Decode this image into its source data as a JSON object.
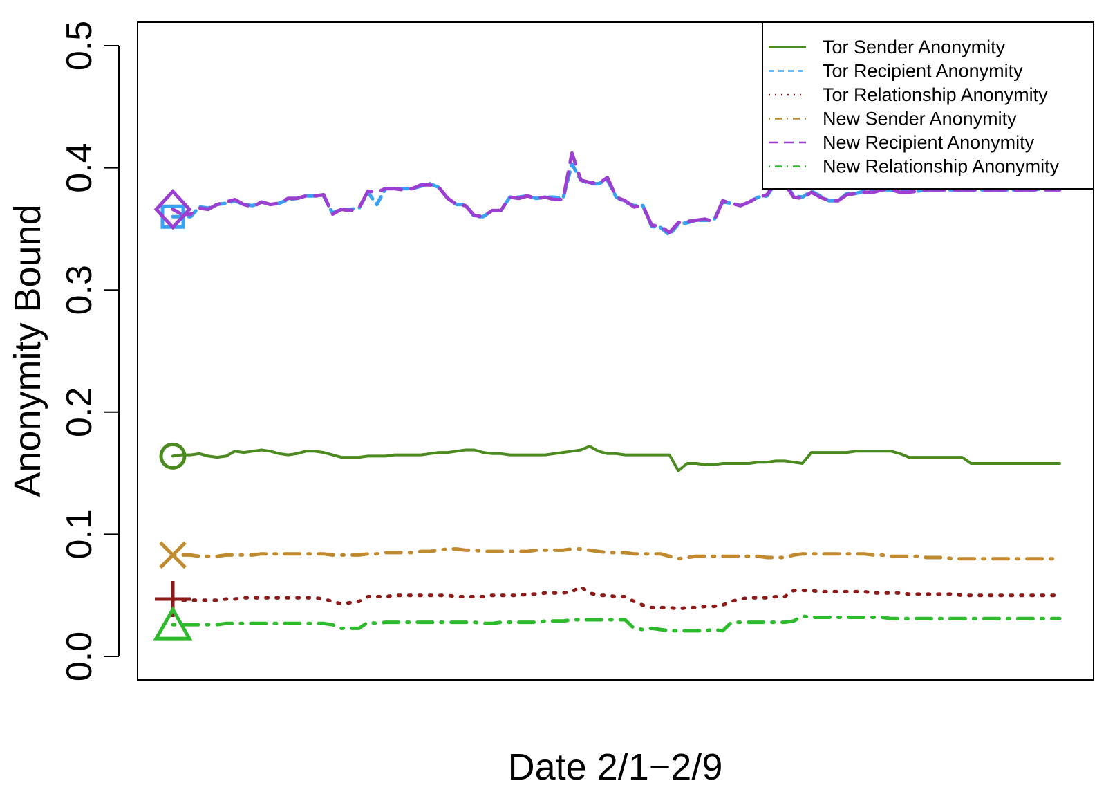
{
  "chart_data": {
    "type": "line",
    "xlabel": "Date 2/1−2/9",
    "ylabel": "Anonymity Bound",
    "ylim": [
      -0.02,
      0.52
    ],
    "yticks": [
      "0.0",
      "0.1",
      "0.2",
      "0.3",
      "0.4",
      "0.5"
    ],
    "x": [
      1,
      2,
      3,
      4,
      5,
      6,
      7,
      8,
      9,
      10,
      11,
      12,
      13,
      14,
      15,
      16,
      17,
      18,
      19,
      20,
      21,
      22,
      23,
      24,
      25,
      26,
      27,
      28,
      29,
      30,
      31,
      32,
      33,
      34,
      35,
      36,
      37,
      38,
      39,
      40,
      41,
      42,
      43,
      44,
      45,
      46,
      47,
      48,
      49,
      50,
      51,
      52,
      53,
      54,
      55,
      56,
      57,
      58,
      59,
      60,
      61,
      62,
      63,
      64,
      65,
      66,
      67,
      68,
      69,
      70,
      71,
      72,
      73,
      74,
      75,
      76,
      77,
      78,
      79,
      80,
      81,
      82,
      83,
      84,
      85,
      86,
      87,
      88,
      89,
      90,
      91,
      92,
      93,
      94,
      95,
      96,
      97,
      98,
      99,
      100,
      101
    ],
    "grid": false,
    "legend_position": "top-right",
    "series": [
      {
        "name": "Tor Sender Anonymity",
        "color": "#4a8a1e",
        "dash": "solid",
        "marker": "circle",
        "values": [
          0.164,
          0.165,
          0.165,
          0.166,
          0.164,
          0.163,
          0.164,
          0.168,
          0.167,
          0.168,
          0.169,
          0.168,
          0.166,
          0.165,
          0.166,
          0.168,
          0.168,
          0.167,
          0.165,
          0.163,
          0.163,
          0.163,
          0.164,
          0.164,
          0.164,
          0.165,
          0.165,
          0.165,
          0.165,
          0.166,
          0.167,
          0.167,
          0.168,
          0.169,
          0.169,
          0.167,
          0.166,
          0.166,
          0.165,
          0.165,
          0.165,
          0.165,
          0.165,
          0.166,
          0.167,
          0.168,
          0.169,
          0.172,
          0.168,
          0.166,
          0.166,
          0.165,
          0.165,
          0.165,
          0.165,
          0.165,
          0.165,
          0.152,
          0.158,
          0.158,
          0.157,
          0.157,
          0.158,
          0.158,
          0.158,
          0.158,
          0.159,
          0.159,
          0.16,
          0.16,
          0.159,
          0.158,
          0.167,
          0.167,
          0.167,
          0.167,
          0.167,
          0.168,
          0.168,
          0.168,
          0.168,
          0.168,
          0.166,
          0.163,
          0.163,
          0.163,
          0.163,
          0.163,
          0.163,
          0.163,
          0.158,
          0.158,
          0.158,
          0.158,
          0.158,
          0.158,
          0.158,
          0.158,
          0.158,
          0.158,
          0.158
        ]
      },
      {
        "name": "Tor Recipient Anonymity",
        "color": "#3aa0f0",
        "dash": "dashed",
        "marker": "square",
        "values": [
          0.36,
          0.36,
          0.36,
          0.368,
          0.367,
          0.37,
          0.371,
          0.373,
          0.37,
          0.369,
          0.372,
          0.37,
          0.371,
          0.374,
          0.375,
          0.377,
          0.377,
          0.377,
          0.363,
          0.366,
          0.366,
          0.367,
          0.38,
          0.37,
          0.383,
          0.383,
          0.383,
          0.383,
          0.385,
          0.387,
          0.384,
          0.375,
          0.37,
          0.37,
          0.36,
          0.36,
          0.365,
          0.365,
          0.376,
          0.376,
          0.377,
          0.375,
          0.376,
          0.376,
          0.375,
          0.403,
          0.39,
          0.387,
          0.387,
          0.39,
          0.376,
          0.372,
          0.369,
          0.369,
          0.352,
          0.351,
          0.345,
          0.354,
          0.355,
          0.357,
          0.357,
          0.357,
          0.372,
          0.371,
          0.369,
          0.372,
          0.376,
          0.377,
          0.388,
          0.388,
          0.377,
          0.376,
          0.381,
          0.377,
          0.373,
          0.373,
          0.379,
          0.379,
          0.381,
          0.381,
          0.382,
          0.382,
          0.381,
          0.381,
          0.381,
          0.382,
          0.382,
          0.382,
          0.382,
          0.382,
          0.382,
          0.382,
          0.382,
          0.382,
          0.382,
          0.382,
          0.382,
          0.382,
          0.383,
          0.383,
          0.383
        ]
      },
      {
        "name": "Tor Relationship Anonymity",
        "color": "#8b1a1a",
        "dash": "dotted",
        "marker": "plus",
        "values": [
          0.047,
          0.046,
          0.046,
          0.046,
          0.046,
          0.046,
          0.047,
          0.047,
          0.048,
          0.048,
          0.048,
          0.048,
          0.048,
          0.048,
          0.048,
          0.048,
          0.048,
          0.047,
          0.045,
          0.043,
          0.044,
          0.045,
          0.049,
          0.049,
          0.049,
          0.05,
          0.05,
          0.05,
          0.05,
          0.05,
          0.05,
          0.05,
          0.049,
          0.049,
          0.049,
          0.049,
          0.05,
          0.05,
          0.05,
          0.05,
          0.051,
          0.051,
          0.052,
          0.052,
          0.052,
          0.053,
          0.057,
          0.052,
          0.05,
          0.05,
          0.049,
          0.049,
          0.045,
          0.042,
          0.04,
          0.04,
          0.04,
          0.039,
          0.04,
          0.04,
          0.041,
          0.041,
          0.042,
          0.045,
          0.047,
          0.048,
          0.048,
          0.048,
          0.049,
          0.049,
          0.054,
          0.054,
          0.054,
          0.053,
          0.053,
          0.053,
          0.053,
          0.053,
          0.053,
          0.052,
          0.052,
          0.052,
          0.052,
          0.051,
          0.051,
          0.051,
          0.051,
          0.051,
          0.051,
          0.05,
          0.05,
          0.05,
          0.05,
          0.05,
          0.05,
          0.05,
          0.05,
          0.05,
          0.05,
          0.05,
          0.05
        ]
      },
      {
        "name": "New Sender Anonymity",
        "color": "#c08b30",
        "dash": "dotdash",
        "marker": "cross",
        "values": [
          0.083,
          0.083,
          0.083,
          0.082,
          0.082,
          0.082,
          0.083,
          0.083,
          0.083,
          0.083,
          0.084,
          0.084,
          0.084,
          0.084,
          0.084,
          0.084,
          0.084,
          0.084,
          0.083,
          0.083,
          0.083,
          0.083,
          0.084,
          0.084,
          0.085,
          0.085,
          0.085,
          0.085,
          0.086,
          0.086,
          0.087,
          0.088,
          0.088,
          0.087,
          0.087,
          0.086,
          0.086,
          0.086,
          0.086,
          0.086,
          0.086,
          0.087,
          0.087,
          0.087,
          0.087,
          0.088,
          0.088,
          0.087,
          0.086,
          0.085,
          0.085,
          0.085,
          0.084,
          0.084,
          0.084,
          0.084,
          0.082,
          0.08,
          0.081,
          0.082,
          0.082,
          0.082,
          0.082,
          0.082,
          0.082,
          0.082,
          0.082,
          0.081,
          0.081,
          0.081,
          0.083,
          0.084,
          0.084,
          0.084,
          0.084,
          0.084,
          0.084,
          0.084,
          0.084,
          0.083,
          0.083,
          0.082,
          0.082,
          0.082,
          0.082,
          0.081,
          0.081,
          0.081,
          0.08,
          0.08,
          0.08,
          0.08,
          0.08,
          0.08,
          0.08,
          0.08,
          0.08,
          0.08,
          0.08,
          0.08,
          0.08
        ]
      },
      {
        "name": "New Recipient Anonymity",
        "color": "#9b3fd0",
        "dash": "longdash",
        "marker": "diamond",
        "values": [
          0.366,
          0.362,
          0.362,
          0.367,
          0.366,
          0.37,
          0.372,
          0.374,
          0.37,
          0.368,
          0.372,
          0.37,
          0.371,
          0.375,
          0.375,
          0.377,
          0.377,
          0.378,
          0.362,
          0.366,
          0.365,
          0.367,
          0.381,
          0.38,
          0.383,
          0.383,
          0.382,
          0.383,
          0.386,
          0.386,
          0.384,
          0.375,
          0.37,
          0.369,
          0.361,
          0.36,
          0.365,
          0.365,
          0.376,
          0.375,
          0.377,
          0.375,
          0.376,
          0.374,
          0.374,
          0.412,
          0.39,
          0.388,
          0.387,
          0.392,
          0.376,
          0.373,
          0.368,
          0.369,
          0.353,
          0.352,
          0.347,
          0.355,
          0.356,
          0.357,
          0.358,
          0.356,
          0.373,
          0.371,
          0.369,
          0.372,
          0.376,
          0.378,
          0.389,
          0.387,
          0.376,
          0.375,
          0.38,
          0.376,
          0.373,
          0.373,
          0.378,
          0.379,
          0.38,
          0.38,
          0.382,
          0.382,
          0.38,
          0.38,
          0.381,
          0.382,
          0.382,
          0.382,
          0.382,
          0.382,
          0.382,
          0.382,
          0.382,
          0.382,
          0.382,
          0.382,
          0.382,
          0.382,
          0.382,
          0.382,
          0.382
        ]
      },
      {
        "name": "New Relationship Anonymity",
        "color": "#2dbb2d",
        "dash": "dotdash",
        "marker": "triangle",
        "values": [
          0.026,
          0.026,
          0.026,
          0.026,
          0.026,
          0.026,
          0.027,
          0.027,
          0.027,
          0.027,
          0.027,
          0.027,
          0.027,
          0.027,
          0.027,
          0.027,
          0.027,
          0.027,
          0.026,
          0.023,
          0.023,
          0.023,
          0.028,
          0.027,
          0.028,
          0.028,
          0.028,
          0.028,
          0.028,
          0.028,
          0.028,
          0.028,
          0.028,
          0.028,
          0.028,
          0.027,
          0.027,
          0.028,
          0.028,
          0.028,
          0.028,
          0.028,
          0.029,
          0.029,
          0.029,
          0.03,
          0.03,
          0.03,
          0.03,
          0.03,
          0.03,
          0.03,
          0.023,
          0.022,
          0.023,
          0.022,
          0.021,
          0.021,
          0.021,
          0.021,
          0.021,
          0.022,
          0.021,
          0.028,
          0.028,
          0.028,
          0.028,
          0.028,
          0.028,
          0.028,
          0.029,
          0.033,
          0.032,
          0.032,
          0.032,
          0.032,
          0.032,
          0.032,
          0.032,
          0.032,
          0.032,
          0.031,
          0.031,
          0.031,
          0.031,
          0.031,
          0.031,
          0.031,
          0.031,
          0.031,
          0.031,
          0.031,
          0.031,
          0.031,
          0.031,
          0.031,
          0.031,
          0.031,
          0.031,
          0.031,
          0.031
        ]
      }
    ]
  }
}
